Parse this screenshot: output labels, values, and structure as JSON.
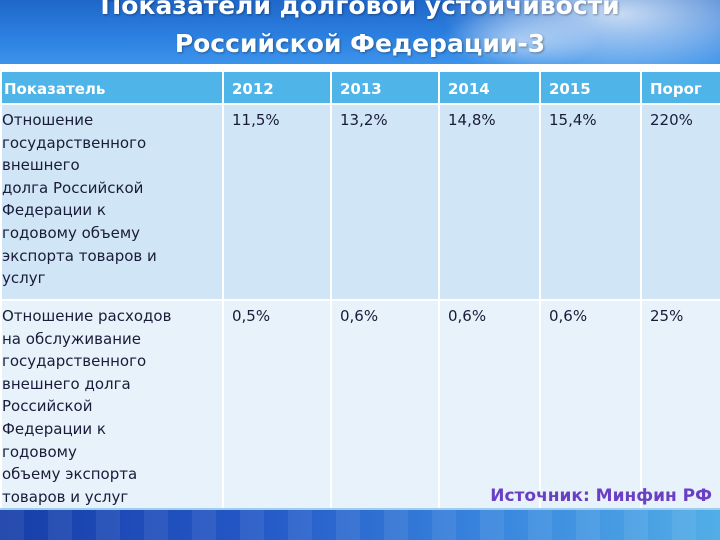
{
  "header": {
    "title_line1": "Показатели долговой устойчивости",
    "title_line2": "Российской Федерации-3"
  },
  "table": {
    "columns": [
      "Показатель",
      "2012",
      "2013",
      "2014",
      "2015",
      "Порог"
    ],
    "rows": [
      {
        "indicator_lines": [
          "Отношение",
          "государственного",
          "внешнего",
          "долга Российской",
          "Федерации к",
          "годовому объему",
          "экспорта товаров и",
          "услуг"
        ],
        "values": [
          "11,5%",
          "13,2%",
          "14,8%",
          "15,4%",
          "220%"
        ]
      },
      {
        "indicator_lines": [
          "Отношение расходов",
          "на обслуживание",
          "государственного",
          "внешнего долга",
          "Российской",
          "Федерации к",
          "годовому",
          "объему экспорта",
          "товаров и услуг"
        ],
        "values": [
          "0,5%",
          "0,6%",
          "0,6%",
          "0,6%",
          "25%"
        ]
      }
    ]
  },
  "source": "Источник: Минфин РФ",
  "colors": {
    "header_blue": "#2b7fe0",
    "table_header": "#4fb4e8",
    "row1_bg": "#d0e5f5",
    "row2_bg": "#e8f2fa",
    "source_text": "#6a3fc4"
  }
}
